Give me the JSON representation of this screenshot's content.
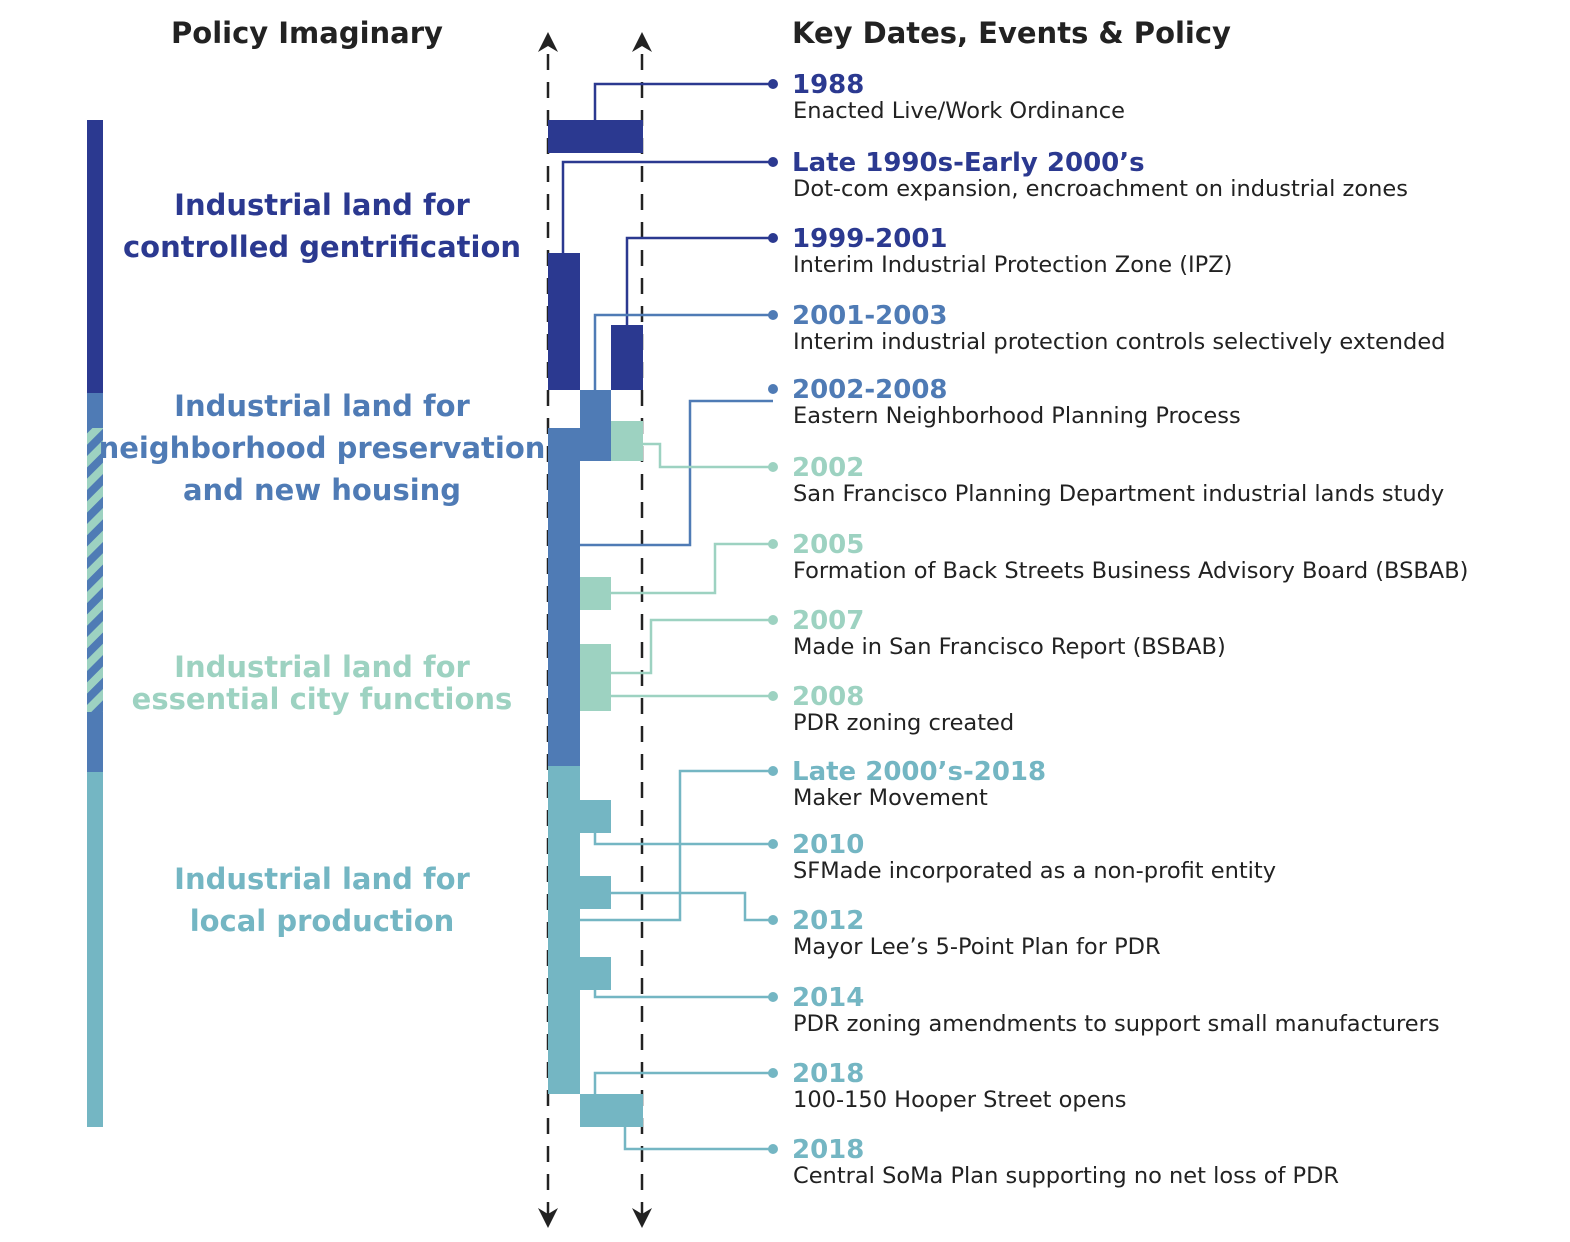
{
  "headers": {
    "left": "Policy Imaginary",
    "right": "Key Dates, Events & Policy"
  },
  "imaginaries": [
    {
      "color": "#2b3990",
      "lines": [
        "Industrial land for",
        "controlled gentrification"
      ]
    },
    {
      "color": "#4f7bb5",
      "lines": [
        "Industrial land for",
        "neighborhood preservation",
        "and new housing"
      ]
    },
    {
      "color": "#9dd2c1",
      "lines": [
        "Industrial land for",
        "essential city functions"
      ]
    },
    {
      "color": "#74b6c3",
      "lines": [
        "Industrial land for",
        "local production"
      ]
    }
  ],
  "events": [
    {
      "date": "1988",
      "text": "Enacted Live/Work Ordinance",
      "color": "#2b3990"
    },
    {
      "date": "Late 1990s-Early 2000’s",
      "text": "Dot-com expansion, encroachment on industrial zones",
      "color": "#2b3990"
    },
    {
      "date": "1999-2001",
      "text": "Interim Industrial Protection Zone (IPZ)",
      "color": "#2b3990"
    },
    {
      "date": "2001-2003",
      "text": "Interim industrial protection controls selectively extended",
      "color": "#4f7bb5"
    },
    {
      "date": "2002-2008",
      "text": "Eastern Neighborhood Planning Process",
      "color": "#4f7bb5"
    },
    {
      "date": "2002",
      "text": "San Francisco Planning Department industrial lands study",
      "color": "#9dd2c1"
    },
    {
      "date": "2005",
      "text": "Formation of Back Streets Business Advisory Board (BSBAB)",
      "color": "#9dd2c1"
    },
    {
      "date": "2007",
      "text": "Made in San Francisco Report (BSBAB)",
      "color": "#9dd2c1"
    },
    {
      "date": "2008",
      "text": "PDR zoning created",
      "color": "#9dd2c1"
    },
    {
      "date": "Late 2000’s-2018",
      "text": "Maker Movement",
      "color": "#74b6c3"
    },
    {
      "date": "2010",
      "text": "SFMade incorporated as a non-profit entity",
      "color": "#74b6c3"
    },
    {
      "date": "2012",
      "text": "Mayor Lee’s 5-Point Plan for PDR",
      "color": "#74b6c3"
    },
    {
      "date": "2014",
      "text": "PDR zoning amendments to support small manufacturers",
      "color": "#74b6c3"
    },
    {
      "date": "2018",
      "text": "100-150 Hooper Street opens",
      "color": "#74b6c3"
    },
    {
      "date": "2018",
      "text": "Central SoMa Plan supporting no net loss of PDR",
      "color": "#74b6c3"
    }
  ]
}
